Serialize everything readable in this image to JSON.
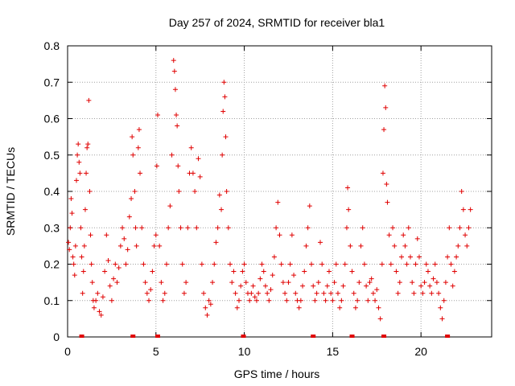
{
  "chart_data": {
    "type": "scatter",
    "title": "Day 257 of 2024, SRMTID for receiver bla1",
    "xlabel": "GPS time / hours",
    "ylabel": "SRMTID / TECUs",
    "xlim": [
      0,
      24
    ],
    "ylim": [
      0,
      0.8
    ],
    "xticks": [
      "0",
      "5",
      "10",
      "15",
      "20"
    ],
    "yticks": [
      "0",
      "0.1",
      "0.2",
      "0.3",
      "0.4",
      "0.5",
      "0.6",
      "0.7",
      "0.8"
    ],
    "grid": true,
    "marker": "+",
    "color": "#e00000",
    "series": [
      {
        "name": "SRMTID",
        "points": [
          [
            0.05,
            0.26
          ],
          [
            0.1,
            0.24
          ],
          [
            0.15,
            0.3
          ],
          [
            0.2,
            0.38
          ],
          [
            0.25,
            0.34
          ],
          [
            0.3,
            0.22
          ],
          [
            0.35,
            0.2
          ],
          [
            0.4,
            0.17
          ],
          [
            0.45,
            0.25
          ],
          [
            0.5,
            0.43
          ],
          [
            0.55,
            0.5
          ],
          [
            0.6,
            0.53
          ],
          [
            0.65,
            0.48
          ],
          [
            0.7,
            0.45
          ],
          [
            0.75,
            0.3
          ],
          [
            0.8,
            0.22
          ],
          [
            0.85,
            0.12
          ],
          [
            0.9,
            0.18
          ],
          [
            0.95,
            0.25
          ],
          [
            1.0,
            0.35
          ],
          [
            1.05,
            0.45
          ],
          [
            1.1,
            0.52
          ],
          [
            1.15,
            0.53
          ],
          [
            1.2,
            0.65
          ],
          [
            1.25,
            0.4
          ],
          [
            1.3,
            0.28
          ],
          [
            1.35,
            0.2
          ],
          [
            1.4,
            0.15
          ],
          [
            1.45,
            0.1
          ],
          [
            1.5,
            0.08
          ],
          [
            1.6,
            0.1
          ],
          [
            1.7,
            0.12
          ],
          [
            1.8,
            0.07
          ],
          [
            1.9,
            0.06
          ],
          [
            2.0,
            0.11
          ],
          [
            2.1,
            0.18
          ],
          [
            2.2,
            0.28
          ],
          [
            2.3,
            0.21
          ],
          [
            2.4,
            0.14
          ],
          [
            2.5,
            0.1
          ],
          [
            2.6,
            0.16
          ],
          [
            2.7,
            0.2
          ],
          [
            2.8,
            0.15
          ],
          [
            2.9,
            0.19
          ],
          [
            3.0,
            0.25
          ],
          [
            3.1,
            0.3
          ],
          [
            3.2,
            0.27
          ],
          [
            3.3,
            0.2
          ],
          [
            3.4,
            0.24
          ],
          [
            3.5,
            0.33
          ],
          [
            3.6,
            0.38
          ],
          [
            3.65,
            0.55
          ],
          [
            3.7,
            0.5
          ],
          [
            3.8,
            0.4
          ],
          [
            3.85,
            0.3
          ],
          [
            3.9,
            0.25
          ],
          [
            4.0,
            0.52
          ],
          [
            4.05,
            0.57
          ],
          [
            4.1,
            0.45
          ],
          [
            4.2,
            0.3
          ],
          [
            4.3,
            0.2
          ],
          [
            4.4,
            0.15
          ],
          [
            4.5,
            0.12
          ],
          [
            4.6,
            0.1
          ],
          [
            4.7,
            0.13
          ],
          [
            4.8,
            0.18
          ],
          [
            4.9,
            0.25
          ],
          [
            5.0,
            0.28
          ],
          [
            5.05,
            0.47
          ],
          [
            5.1,
            0.61
          ],
          [
            5.2,
            0.25
          ],
          [
            5.3,
            0.15
          ],
          [
            5.4,
            0.1
          ],
          [
            5.5,
            0.12
          ],
          [
            5.6,
            0.2
          ],
          [
            5.7,
            0.3
          ],
          [
            5.8,
            0.36
          ],
          [
            5.9,
            0.5
          ],
          [
            6.0,
            0.76
          ],
          [
            6.05,
            0.73
          ],
          [
            6.1,
            0.68
          ],
          [
            6.15,
            0.61
          ],
          [
            6.2,
            0.58
          ],
          [
            6.25,
            0.47
          ],
          [
            6.3,
            0.4
          ],
          [
            6.4,
            0.3
          ],
          [
            6.5,
            0.2
          ],
          [
            6.6,
            0.12
          ],
          [
            6.7,
            0.15
          ],
          [
            6.8,
            0.3
          ],
          [
            6.9,
            0.45
          ],
          [
            7.0,
            0.52
          ],
          [
            7.1,
            0.45
          ],
          [
            7.2,
            0.4
          ],
          [
            7.3,
            0.3
          ],
          [
            7.4,
            0.49
          ],
          [
            7.5,
            0.44
          ],
          [
            7.6,
            0.2
          ],
          [
            7.7,
            0.12
          ],
          [
            7.8,
            0.08
          ],
          [
            7.9,
            0.06
          ],
          [
            8.0,
            0.1
          ],
          [
            8.1,
            0.09
          ],
          [
            8.2,
            0.15
          ],
          [
            8.3,
            0.2
          ],
          [
            8.4,
            0.26
          ],
          [
            8.5,
            0.3
          ],
          [
            8.6,
            0.39
          ],
          [
            8.7,
            0.35
          ],
          [
            8.75,
            0.5
          ],
          [
            8.8,
            0.62
          ],
          [
            8.85,
            0.7
          ],
          [
            8.9,
            0.66
          ],
          [
            8.95,
            0.55
          ],
          [
            9.0,
            0.4
          ],
          [
            9.1,
            0.3
          ],
          [
            9.2,
            0.2
          ],
          [
            9.3,
            0.15
          ],
          [
            9.4,
            0.18
          ],
          [
            9.5,
            0.12
          ],
          [
            9.6,
            0.08
          ],
          [
            9.7,
            0.1
          ],
          [
            9.8,
            0.14
          ],
          [
            9.9,
            0.18
          ],
          [
            10.0,
            0.2
          ],
          [
            10.1,
            0.15
          ],
          [
            10.2,
            0.12
          ],
          [
            10.3,
            0.1
          ],
          [
            10.4,
            0.12
          ],
          [
            10.5,
            0.14
          ],
          [
            10.6,
            0.11
          ],
          [
            10.7,
            0.1
          ],
          [
            10.8,
            0.12
          ],
          [
            10.9,
            0.16
          ],
          [
            11.0,
            0.2
          ],
          [
            11.1,
            0.18
          ],
          [
            11.2,
            0.14
          ],
          [
            11.3,
            0.12
          ],
          [
            11.4,
            0.1
          ],
          [
            11.5,
            0.13
          ],
          [
            11.6,
            0.17
          ],
          [
            11.7,
            0.22
          ],
          [
            11.8,
            0.3
          ],
          [
            11.9,
            0.37
          ],
          [
            12.0,
            0.28
          ],
          [
            12.1,
            0.2
          ],
          [
            12.2,
            0.15
          ],
          [
            12.3,
            0.12
          ],
          [
            12.4,
            0.1
          ],
          [
            12.5,
            0.15
          ],
          [
            12.6,
            0.2
          ],
          [
            12.7,
            0.28
          ],
          [
            12.8,
            0.17
          ],
          [
            12.9,
            0.12
          ],
          [
            13.0,
            0.1
          ],
          [
            13.1,
            0.08
          ],
          [
            13.2,
            0.1
          ],
          [
            13.3,
            0.14
          ],
          [
            13.4,
            0.18
          ],
          [
            13.5,
            0.25
          ],
          [
            13.6,
            0.3
          ],
          [
            13.7,
            0.36
          ],
          [
            13.8,
            0.2
          ],
          [
            13.9,
            0.14
          ],
          [
            14.0,
            0.1
          ],
          [
            14.1,
            0.12
          ],
          [
            14.2,
            0.15
          ],
          [
            14.3,
            0.26
          ],
          [
            14.4,
            0.2
          ],
          [
            14.5,
            0.12
          ],
          [
            14.6,
            0.1
          ],
          [
            14.7,
            0.14
          ],
          [
            14.8,
            0.18
          ],
          [
            14.9,
            0.12
          ],
          [
            15.0,
            0.1
          ],
          [
            15.1,
            0.15
          ],
          [
            15.2,
            0.2
          ],
          [
            15.3,
            0.12
          ],
          [
            15.4,
            0.08
          ],
          [
            15.5,
            0.1
          ],
          [
            15.6,
            0.14
          ],
          [
            15.7,
            0.2
          ],
          [
            15.8,
            0.3
          ],
          [
            15.85,
            0.41
          ],
          [
            15.9,
            0.35
          ],
          [
            16.0,
            0.25
          ],
          [
            16.1,
            0.18
          ],
          [
            16.2,
            0.12
          ],
          [
            16.3,
            0.08
          ],
          [
            16.4,
            0.1
          ],
          [
            16.5,
            0.15
          ],
          [
            16.6,
            0.25
          ],
          [
            16.7,
            0.3
          ],
          [
            16.8,
            0.2
          ],
          [
            16.9,
            0.14
          ],
          [
            17.0,
            0.1
          ],
          [
            17.1,
            0.15
          ],
          [
            17.2,
            0.16
          ],
          [
            17.3,
            0.12
          ],
          [
            17.4,
            0.1
          ],
          [
            17.5,
            0.13
          ],
          [
            17.6,
            0.08
          ],
          [
            17.7,
            0.05
          ],
          [
            17.8,
            0.2
          ],
          [
            17.85,
            0.45
          ],
          [
            17.9,
            0.57
          ],
          [
            17.95,
            0.69
          ],
          [
            18.0,
            0.63
          ],
          [
            18.05,
            0.42
          ],
          [
            18.1,
            0.37
          ],
          [
            18.2,
            0.28
          ],
          [
            18.3,
            0.2
          ],
          [
            18.4,
            0.3
          ],
          [
            18.5,
            0.25
          ],
          [
            18.6,
            0.18
          ],
          [
            18.7,
            0.12
          ],
          [
            18.8,
            0.15
          ],
          [
            18.9,
            0.22
          ],
          [
            19.0,
            0.28
          ],
          [
            19.1,
            0.25
          ],
          [
            19.2,
            0.2
          ],
          [
            19.3,
            0.3
          ],
          [
            19.4,
            0.22
          ],
          [
            19.5,
            0.15
          ],
          [
            19.6,
            0.12
          ],
          [
            19.7,
            0.2
          ],
          [
            19.8,
            0.27
          ],
          [
            19.9,
            0.22
          ],
          [
            20.0,
            0.14
          ],
          [
            20.1,
            0.12
          ],
          [
            20.2,
            0.15
          ],
          [
            20.3,
            0.2
          ],
          [
            20.4,
            0.18
          ],
          [
            20.5,
            0.14
          ],
          [
            20.6,
            0.12
          ],
          [
            20.7,
            0.16
          ],
          [
            20.8,
            0.2
          ],
          [
            20.9,
            0.15
          ],
          [
            21.0,
            0.12
          ],
          [
            21.1,
            0.08
          ],
          [
            21.2,
            0.05
          ],
          [
            21.3,
            0.1
          ],
          [
            21.4,
            0.15
          ],
          [
            21.5,
            0.22
          ],
          [
            21.6,
            0.3
          ],
          [
            21.7,
            0.2
          ],
          [
            21.8,
            0.14
          ],
          [
            21.9,
            0.18
          ],
          [
            22.0,
            0.22
          ],
          [
            22.1,
            0.25
          ],
          [
            22.2,
            0.3
          ],
          [
            22.3,
            0.4
          ],
          [
            22.4,
            0.35
          ],
          [
            22.5,
            0.28
          ],
          [
            22.6,
            0.25
          ],
          [
            22.7,
            0.3
          ],
          [
            22.8,
            0.35
          ]
        ]
      }
    ],
    "gap_markers_x": [
      0.8,
      3.7,
      5.1,
      9.95,
      13.9,
      16.1,
      17.9,
      21.5
    ]
  }
}
